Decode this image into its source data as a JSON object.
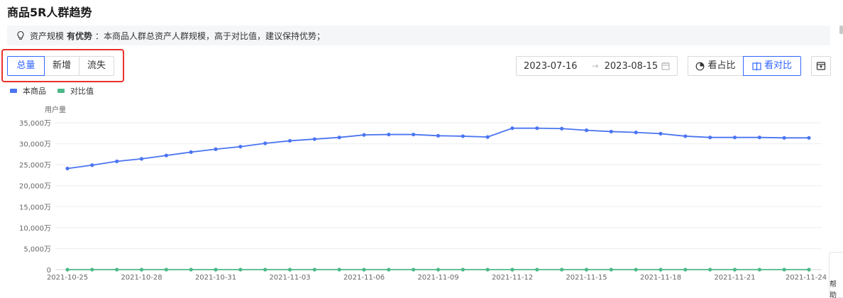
{
  "header": {
    "title": "商品5R人群趋势"
  },
  "insight": {
    "prefix": "资产规模",
    "strong": "有优势",
    "text": "：本商品人群总资产人群规模，高于对比值，建议保持优势；"
  },
  "tabs": [
    {
      "label": "总量",
      "active": true
    },
    {
      "label": "新增",
      "active": false
    },
    {
      "label": "流失",
      "active": false
    }
  ],
  "date_range": {
    "start": "2023-07-16",
    "arrow": "→",
    "end": "2023-08-15"
  },
  "view_buttons": [
    {
      "label": "看占比",
      "active": false
    },
    {
      "label": "看对比",
      "active": true
    }
  ],
  "right_panel": {
    "label": "帮助"
  },
  "colors": {
    "primary": "#4a74f1",
    "compare": "#4cb987",
    "highlight": "#e8322b",
    "accent": "#3366ff"
  },
  "chart_data": {
    "type": "line",
    "ylabel": "用户量",
    "y_ticks": [
      "0",
      "5,000万",
      "10,000万",
      "15,000万",
      "20,000万",
      "25,000万",
      "30,000万",
      "35,000万"
    ],
    "ylim": [
      0,
      35000
    ],
    "x_tick_labels": [
      "2021-10-25",
      "2021-10-28",
      "2021-10-31",
      "2021-11-03",
      "2021-11-06",
      "2021-11-09",
      "2021-11-12",
      "2021-11-15",
      "2021-11-18",
      "2021-11-21",
      "2021-11-24"
    ],
    "x": [
      "2021-10-25",
      "2021-10-26",
      "2021-10-27",
      "2021-10-28",
      "2021-10-29",
      "2021-10-30",
      "2021-10-31",
      "2021-11-01",
      "2021-11-02",
      "2021-11-03",
      "2021-11-04",
      "2021-11-05",
      "2021-11-06",
      "2021-11-07",
      "2021-11-08",
      "2021-11-09",
      "2021-11-10",
      "2021-11-11",
      "2021-11-12",
      "2021-11-13",
      "2021-11-14",
      "2021-11-15",
      "2021-11-16",
      "2021-11-17",
      "2021-11-18",
      "2021-11-19",
      "2021-11-20",
      "2021-11-21",
      "2021-11-22",
      "2021-11-23",
      "2021-11-24"
    ],
    "series": [
      {
        "name": "本商品",
        "values": [
          24100,
          24900,
          25800,
          26400,
          27200,
          28000,
          28700,
          29300,
          30100,
          30700,
          31100,
          31500,
          32100,
          32200,
          32200,
          31900,
          31800,
          31600,
          33700,
          33700,
          33600,
          33200,
          32900,
          32700,
          32400,
          31800,
          31500,
          31500,
          31500,
          31400,
          31400
        ]
      },
      {
        "name": "对比值",
        "values": [
          0,
          0,
          0,
          0,
          0,
          0,
          0,
          0,
          0,
          0,
          0,
          0,
          0,
          0,
          0,
          0,
          0,
          0,
          0,
          0,
          0,
          0,
          0,
          0,
          0,
          0,
          0,
          0,
          0,
          0,
          0
        ]
      }
    ],
    "grid": true,
    "legend": "top-left"
  }
}
